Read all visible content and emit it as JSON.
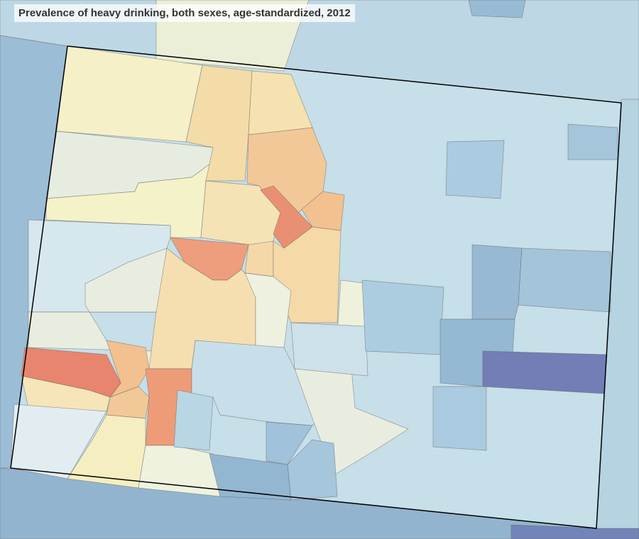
{
  "title": "Prevalence of heavy drinking, both sexes, age-standardized, 2012"
}
